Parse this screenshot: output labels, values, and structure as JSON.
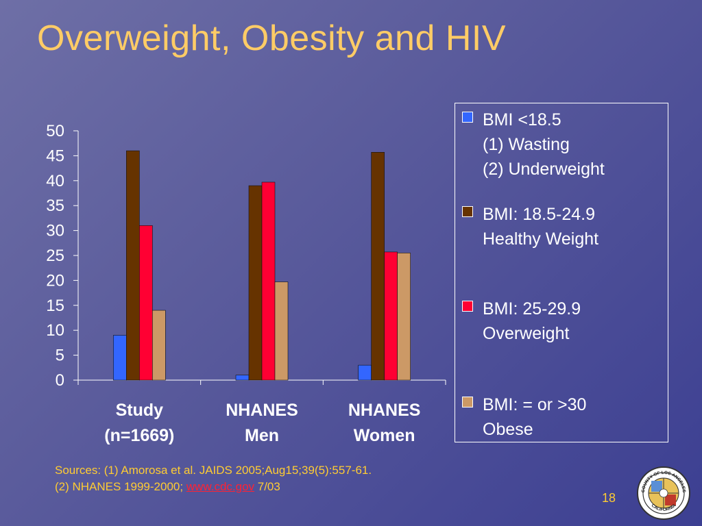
{
  "slide": {
    "title": "Overweight, Obesity and HIV",
    "page_number": "18",
    "sources": {
      "line1": "Sources: (1) Amorosa et al. JAIDS 2005;Aug15;39(5):557-61.",
      "line2_prefix": "(2) NHANES 1999-2000; ",
      "link_text": "www.cdc.gov",
      "line2_suffix": " 7/03"
    },
    "seal": {
      "text_top": "COUNTY OF LOS ANGELES",
      "text_bottom": "CALIFORNIA"
    }
  },
  "chart_data": {
    "type": "bar",
    "categories": [
      [
        "Study",
        "(n=1669)"
      ],
      [
        "NHANES",
        "Men"
      ],
      [
        "NHANES",
        "Women"
      ]
    ],
    "series": [
      {
        "name": "BMI <18.5 (1) Wasting (2) Underweight",
        "legend_lines": [
          "BMI <18.5",
          "(1) Wasting",
          "(2) Underweight"
        ],
        "color": "#3366ff",
        "values": [
          9,
          1,
          3
        ]
      },
      {
        "name": "BMI: 18.5-24.9 Healthy Weight",
        "legend_lines": [
          "BMI: 18.5-24.9",
          "Healthy Weight"
        ],
        "color": "#663300",
        "values": [
          46,
          39,
          45.7
        ]
      },
      {
        "name": "BMI: 25-29.9 Overweight",
        "legend_lines": [
          "BMI: 25-29.9",
          "Overweight"
        ],
        "color": "#ff0033",
        "values": [
          31,
          39.7,
          25.7
        ]
      },
      {
        "name": "BMI: = or >30 Obese",
        "legend_lines": [
          "BMI: = or >30",
          "Obese"
        ],
        "color": "#cc9966",
        "values": [
          14,
          19.7,
          25.5
        ]
      }
    ],
    "yticks": [
      "0",
      "5",
      "10",
      "15",
      "20",
      "25",
      "30",
      "35",
      "40",
      "45",
      "50"
    ],
    "ylim": [
      0,
      50
    ],
    "grid": false,
    "legend_position": "right"
  }
}
